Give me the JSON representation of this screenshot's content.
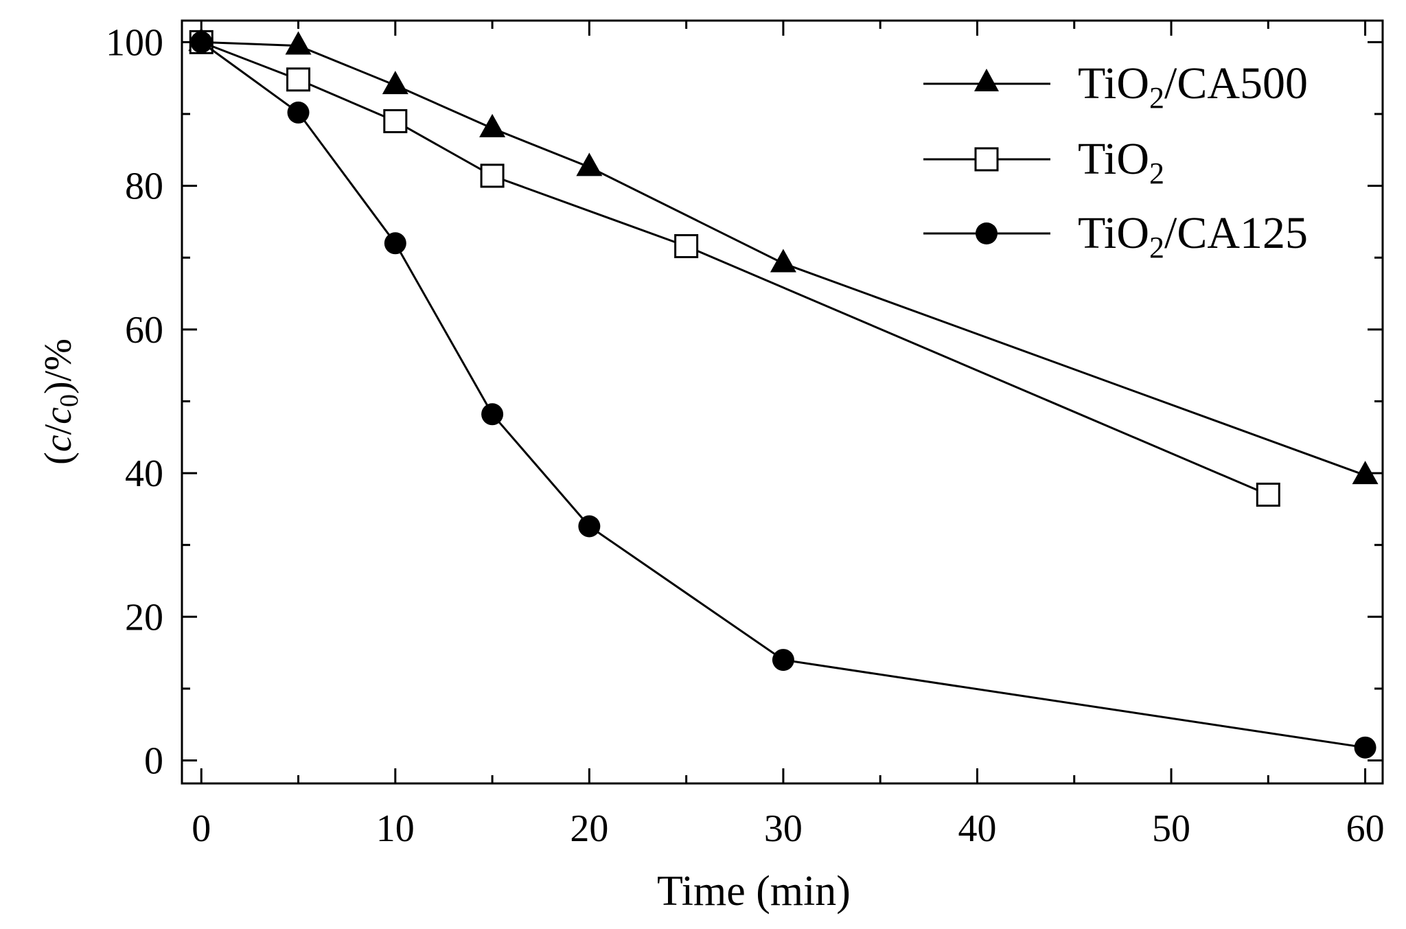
{
  "chart_data": {
    "type": "line",
    "title": "",
    "xlabel": "Time (min)",
    "ylabel": {
      "open": "(",
      "c": "c",
      "slash": "/",
      "c0": "c",
      "sub0": "0",
      "close": ")/%"
    },
    "xlim": [
      -1,
      60.9
    ],
    "ylim": [
      -3.2,
      103
    ],
    "xticks": [
      0,
      10,
      20,
      30,
      40,
      50,
      60
    ],
    "xtick_labels": [
      "0",
      "10",
      "20",
      "30",
      "40",
      "50",
      "60"
    ],
    "yticks": [
      0,
      20,
      40,
      60,
      80,
      100
    ],
    "ytick_labels": [
      "0",
      "20",
      "40",
      "60",
      "80",
      "100"
    ],
    "x_minor_step": 5,
    "y_minor_step": 10,
    "legend_position": "top-right",
    "series": [
      {
        "name": "TiO2/CA500",
        "legend": {
          "base": "TiO",
          "sub": "2",
          "rest": "/CA500"
        },
        "marker": "filled-triangle",
        "x": [
          0,
          5,
          10,
          15,
          20,
          30,
          60
        ],
        "y": [
          100,
          99.5,
          94,
          88,
          82.6,
          69.2,
          39.7
        ]
      },
      {
        "name": "TiO2",
        "legend": {
          "base": "TiO",
          "sub": "2",
          "rest": ""
        },
        "marker": "open-square",
        "x": [
          0,
          5,
          10,
          15,
          25,
          55
        ],
        "y": [
          100,
          94.8,
          89,
          81.4,
          71.6,
          37
        ]
      },
      {
        "name": "TiO2/CA125",
        "legend": {
          "base": "TiO",
          "sub": "2",
          "rest": "/CA125"
        },
        "marker": "filled-circle",
        "x": [
          0,
          5,
          10,
          15,
          20,
          30,
          60
        ],
        "y": [
          100,
          90.2,
          72,
          48.2,
          32.6,
          14,
          1.8
        ]
      }
    ],
    "colors": {
      "line": "#000000",
      "marker_fill": "#000000",
      "open_fill": "#ffffff",
      "ylabel_color": "#7a4a2a"
    }
  }
}
